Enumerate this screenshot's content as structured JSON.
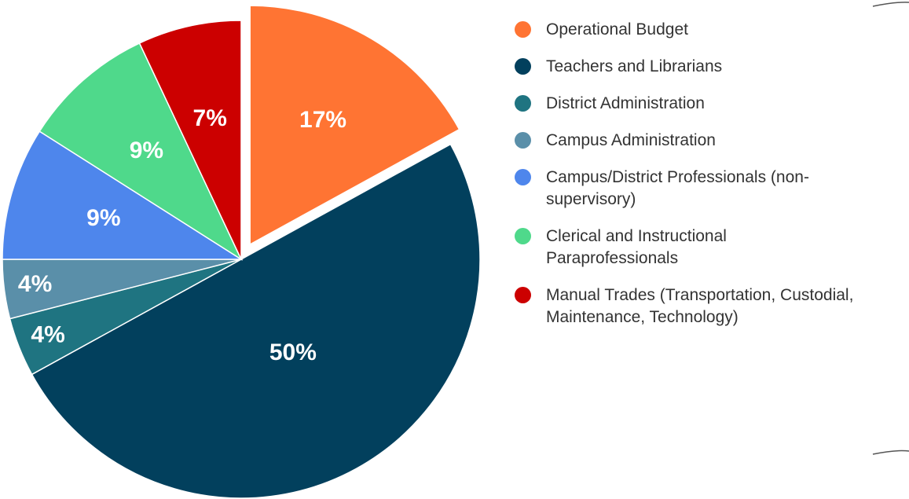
{
  "chart_data": {
    "type": "pie",
    "categories": [
      "Operational Budget",
      "Teachers and Librarians",
      "District Administration",
      "Campus Administration",
      "Campus/District Professionals (non-supervisory)",
      "Clerical and Instructional Paraprofessionals",
      "Manual Trades (Transportation, Custodial, Maintenance, Technology)"
    ],
    "values": [
      17,
      50,
      4,
      4,
      9,
      9,
      7
    ],
    "value_labels": [
      "17%",
      "50%",
      "4%",
      "4%",
      "9%",
      "9%",
      "7%"
    ],
    "colors": [
      "#ff7433",
      "#02405d",
      "#1f7481",
      "#5a8fa9",
      "#4e86ec",
      "#4fd98b",
      "#cc0000"
    ],
    "exploded": [
      0
    ],
    "legend": "right"
  }
}
